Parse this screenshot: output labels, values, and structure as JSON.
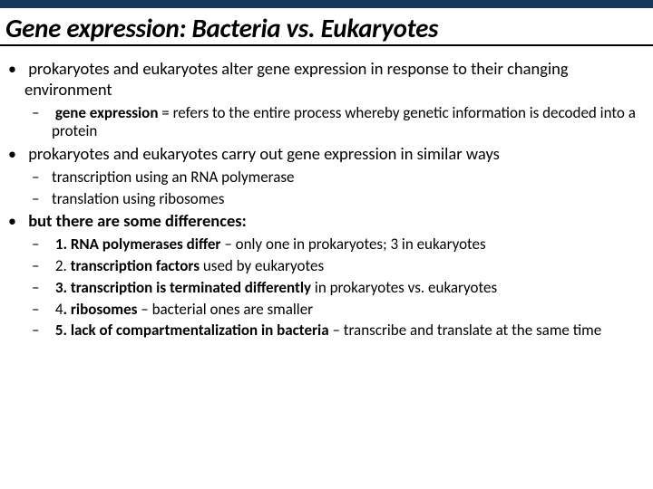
{
  "colors": {
    "header_bar": "#17375e",
    "background": "#ffffff",
    "text": "#000000"
  },
  "title": "Gene expression: Bacteria vs. Eukaryotes",
  "bullets": {
    "b1": {
      "text": "prokaryotes and eukaryotes alter gene expression in response to their changing environment",
      "sub": {
        "s1_bold": "gene expression",
        "s1_rest": " = refers to the entire process whereby genetic information is decoded into a protein"
      }
    },
    "b2": {
      "text": "prokaryotes and eukaryotes carry out gene expression in similar ways",
      "sub": {
        "s1": "transcription using an RNA polymerase",
        "s2": "translation using ribosomes"
      }
    },
    "b3": {
      "text": "but there are some differences:",
      "sub": {
        "s1_bold": "1. RNA polymerases differ",
        "s1_rest": " – only one in prokaryotes; 3 in eukaryotes",
        "s2_lead": "2. ",
        "s2_bold": "transcription factors",
        "s2_rest": " used by eukaryotes",
        "s3_bold": "3. transcription is terminated differently",
        "s3_rest": " in prokaryotes vs. eukaryotes",
        "s4_lead": "4",
        "s4_bold": ". ribosomes",
        "s4_rest": " – bacterial ones are smaller",
        "s5_bold": "5. lack of compartmentalization in bacteria",
        "s5_rest": " – transcribe and translate at the same time"
      }
    }
  }
}
